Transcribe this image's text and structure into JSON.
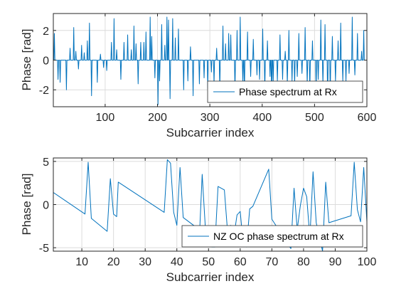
{
  "chart_data": [
    {
      "type": "line",
      "xlabel": "Subcarrier index",
      "ylabel": "Phase [rad]",
      "xlim": [
        1,
        600
      ],
      "ylim": [
        -3.14,
        3.14
      ],
      "xticks": [
        100,
        200,
        300,
        400,
        500,
        600
      ],
      "yticks": [
        -2,
        0,
        2
      ],
      "grid": true,
      "legend_position": "bottom-right",
      "color": "#0072BD",
      "series": [
        {
          "name": "Phase spectrum at Rx",
          "style": "spikes",
          "spikes": [
            [
              3,
              1.8
            ],
            [
              10,
              -1.3
            ],
            [
              14,
              -1.5
            ],
            [
              26,
              -2.0
            ],
            [
              33,
              0.8
            ],
            [
              40,
              2.2
            ],
            [
              44,
              0.6
            ],
            [
              49,
              -0.6
            ],
            [
              55,
              1.0
            ],
            [
              60,
              0.5
            ],
            [
              66,
              1.3
            ],
            [
              70,
              2.5
            ],
            [
              74,
              -2.4
            ],
            [
              85,
              -1.5
            ],
            [
              91,
              0.4
            ],
            [
              97,
              -0.5
            ],
            [
              103,
              -0.7
            ],
            [
              112,
              1.2
            ],
            [
              117,
              2.8
            ],
            [
              122,
              0.7
            ],
            [
              130,
              -1.3
            ],
            [
              136,
              1.2
            ],
            [
              143,
              1.7
            ],
            [
              150,
              0.7
            ],
            [
              155,
              2.3
            ],
            [
              159,
              1.1
            ],
            [
              163,
              -1.6
            ],
            [
              168,
              1.2
            ],
            [
              174,
              1.2
            ],
            [
              178,
              1.9
            ],
            [
              186,
              2.9
            ],
            [
              189,
              1.6
            ],
            [
              195,
              -1.2
            ],
            [
              201,
              -3.0
            ],
            [
              204,
              -1.4
            ],
            [
              208,
              2.4
            ],
            [
              214,
              1.0
            ],
            [
              218,
              2.9
            ],
            [
              221,
              2.7
            ],
            [
              224,
              -2.6
            ],
            [
              229,
              2.8
            ],
            [
              234,
              1.5
            ],
            [
              240,
              2.1
            ],
            [
              250,
              -2.0
            ],
            [
              258,
              -1.4
            ],
            [
              263,
              0.9
            ],
            [
              268,
              -2.4
            ],
            [
              280,
              -1.6
            ],
            [
              289,
              -1.2
            ],
            [
              296,
              -1.9
            ],
            [
              303,
              -0.8
            ],
            [
              308,
              -1.6
            ],
            [
              313,
              0.8
            ],
            [
              319,
              -1.9
            ],
            [
              325,
              2.3
            ],
            [
              330,
              1.1
            ],
            [
              336,
              1.8
            ],
            [
              340,
              1.7
            ],
            [
              348,
              -2.0
            ],
            [
              352,
              2.0
            ],
            [
              358,
              2.9
            ],
            [
              363,
              -1.4
            ],
            [
              366,
              -2.3
            ],
            [
              372,
              1.9
            ],
            [
              378,
              -1.1
            ],
            [
              383,
              1.4
            ],
            [
              390,
              -1.0
            ],
            [
              395,
              -1.3
            ],
            [
              401,
              2.1
            ],
            [
              405,
              -2.0
            ],
            [
              410,
              1.3
            ],
            [
              415,
              -1.1
            ],
            [
              418,
              -2.7
            ],
            [
              421,
              -1.5
            ],
            [
              429,
              -1.4
            ],
            [
              434,
              1.7
            ],
            [
              439,
              -1.3
            ],
            [
              444,
              0.6
            ],
            [
              448,
              -1.6
            ],
            [
              451,
              2.0
            ],
            [
              457,
              -1.4
            ],
            [
              462,
              -1.6
            ],
            [
              467,
              -1.1
            ],
            [
              470,
              1.8
            ],
            [
              476,
              -0.9
            ],
            [
              482,
              2.2
            ],
            [
              486,
              -1.6
            ],
            [
              491,
              -2.0
            ],
            [
              496,
              1.3
            ],
            [
              503,
              -2.2
            ],
            [
              507,
              -1.3
            ],
            [
              512,
              2.7
            ],
            [
              516,
              -1.6
            ],
            [
              520,
              2.4
            ],
            [
              525,
              -2.7
            ],
            [
              530,
              -2.3
            ],
            [
              534,
              1.6
            ],
            [
              540,
              -1.4
            ],
            [
              545,
              1.3
            ],
            [
              550,
              2.5
            ],
            [
              554,
              -1.4
            ],
            [
              560,
              -1.4
            ],
            [
              566,
              -0.9
            ],
            [
              572,
              2.9
            ],
            [
              577,
              -1.0
            ],
            [
              582,
              1.8
            ],
            [
              590,
              0.6
            ],
            [
              594,
              2.0
            ]
          ]
        }
      ]
    },
    {
      "type": "line",
      "xlabel": "Subcarrier index",
      "ylabel": "Phase [rad]",
      "xlim": [
        1,
        100
      ],
      "ylim": [
        -5.4,
        5.4
      ],
      "xticks": [
        10,
        20,
        30,
        40,
        50,
        60,
        70,
        80,
        90,
        100
      ],
      "yticks": [
        -5,
        0,
        5
      ],
      "grid": true,
      "legend_position": "bottom-right",
      "color": "#0072BD",
      "series": [
        {
          "name": "NZ OC phase spectrum at Rx",
          "style": "line",
          "points": [
            [
              1,
              1.4
            ],
            [
              11,
              -1.1
            ],
            [
              12,
              4.9
            ],
            [
              13,
              -1.6
            ],
            [
              18,
              -3.1
            ],
            [
              19,
              3.0
            ],
            [
              20,
              -1.1
            ],
            [
              21,
              -1.4
            ],
            [
              21.5,
              2.6
            ],
            [
              36,
              -0.9
            ],
            [
              37,
              5.2
            ],
            [
              38,
              4.8
            ],
            [
              39,
              -0.9
            ],
            [
              40,
              -2.4
            ],
            [
              41,
              4.3
            ],
            [
              42,
              -1.5
            ],
            [
              46,
              -2.6
            ],
            [
              47,
              -4.7
            ],
            [
              48,
              3.5
            ],
            [
              49,
              -2.7
            ],
            [
              50,
              -2.9
            ],
            [
              51,
              -4.9
            ],
            [
              52,
              -4.9
            ],
            [
              53,
              2.1
            ],
            [
              55,
              1.7
            ],
            [
              56,
              -3.1
            ],
            [
              57,
              -2.4
            ],
            [
              58,
              -3.7
            ],
            [
              59,
              -1.2
            ],
            [
              60,
              -0.8
            ],
            [
              61,
              -4.7
            ],
            [
              62,
              -4.9
            ],
            [
              63,
              -0.5
            ],
            [
              64,
              -0.2
            ],
            [
              69,
              4.1
            ],
            [
              70,
              -1.7
            ],
            [
              76,
              -5.1
            ],
            [
              77,
              1.9
            ],
            [
              78,
              -2.9
            ],
            [
              79,
              -0.1
            ],
            [
              80,
              1.9
            ],
            [
              81,
              0.9
            ],
            [
              82,
              -3.9
            ],
            [
              83,
              3.8
            ],
            [
              84,
              -2.1
            ],
            [
              86,
              -5.4
            ],
            [
              87,
              2.6
            ],
            [
              88,
              -2.1
            ],
            [
              95,
              -1.3
            ],
            [
              96,
              4.9
            ],
            [
              97,
              -0.6
            ],
            [
              98,
              -2.0
            ],
            [
              99,
              4.3
            ],
            [
              100,
              -2.0
            ]
          ]
        }
      ]
    }
  ]
}
